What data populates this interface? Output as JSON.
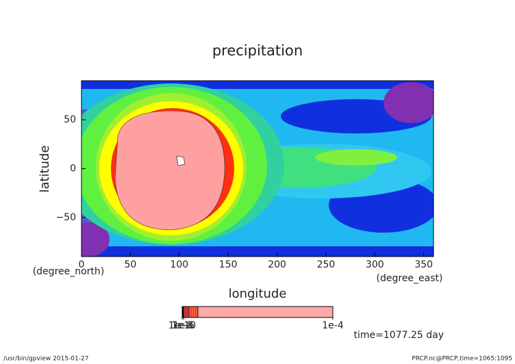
{
  "chart_data": {
    "type": "contour",
    "title": "precipitation",
    "x_label": "longitude",
    "y_label": "latitude",
    "x_units": "(degree_east)",
    "y_units": "(degree_north)",
    "xlim": [
      0,
      360
    ],
    "ylim": [
      -90,
      90
    ],
    "xticks": [
      0,
      50,
      100,
      150,
      200,
      250,
      300,
      350
    ],
    "yticks": [
      {
        "value": -50,
        "label": "−50"
      },
      0,
      50
    ],
    "colorbar": {
      "xlim": [
        0,
        0.0001
      ],
      "ticks": [
        {
          "value": 1e-10,
          "label": "1e-10"
        },
        {
          "value": 1e-08,
          "label": "1e-8"
        },
        {
          "value": 1e-06,
          "label": "1e-6"
        },
        {
          "value": 0.0001,
          "label": "1e-4"
        }
      ],
      "bounds": [
        0,
        1e-06,
        4.5e-06,
        1.05e-05,
        0.0001
      ],
      "colors": [
        "#000000",
        "#c01010",
        "#ff3010",
        "#ffa0a0"
      ]
    },
    "annotation": "time=1077.25 day",
    "footer_left": "/usr/bin/gpview  2015-01-27",
    "footer_right": "PRCP.nc@PRCP,time=1065:1095"
  }
}
